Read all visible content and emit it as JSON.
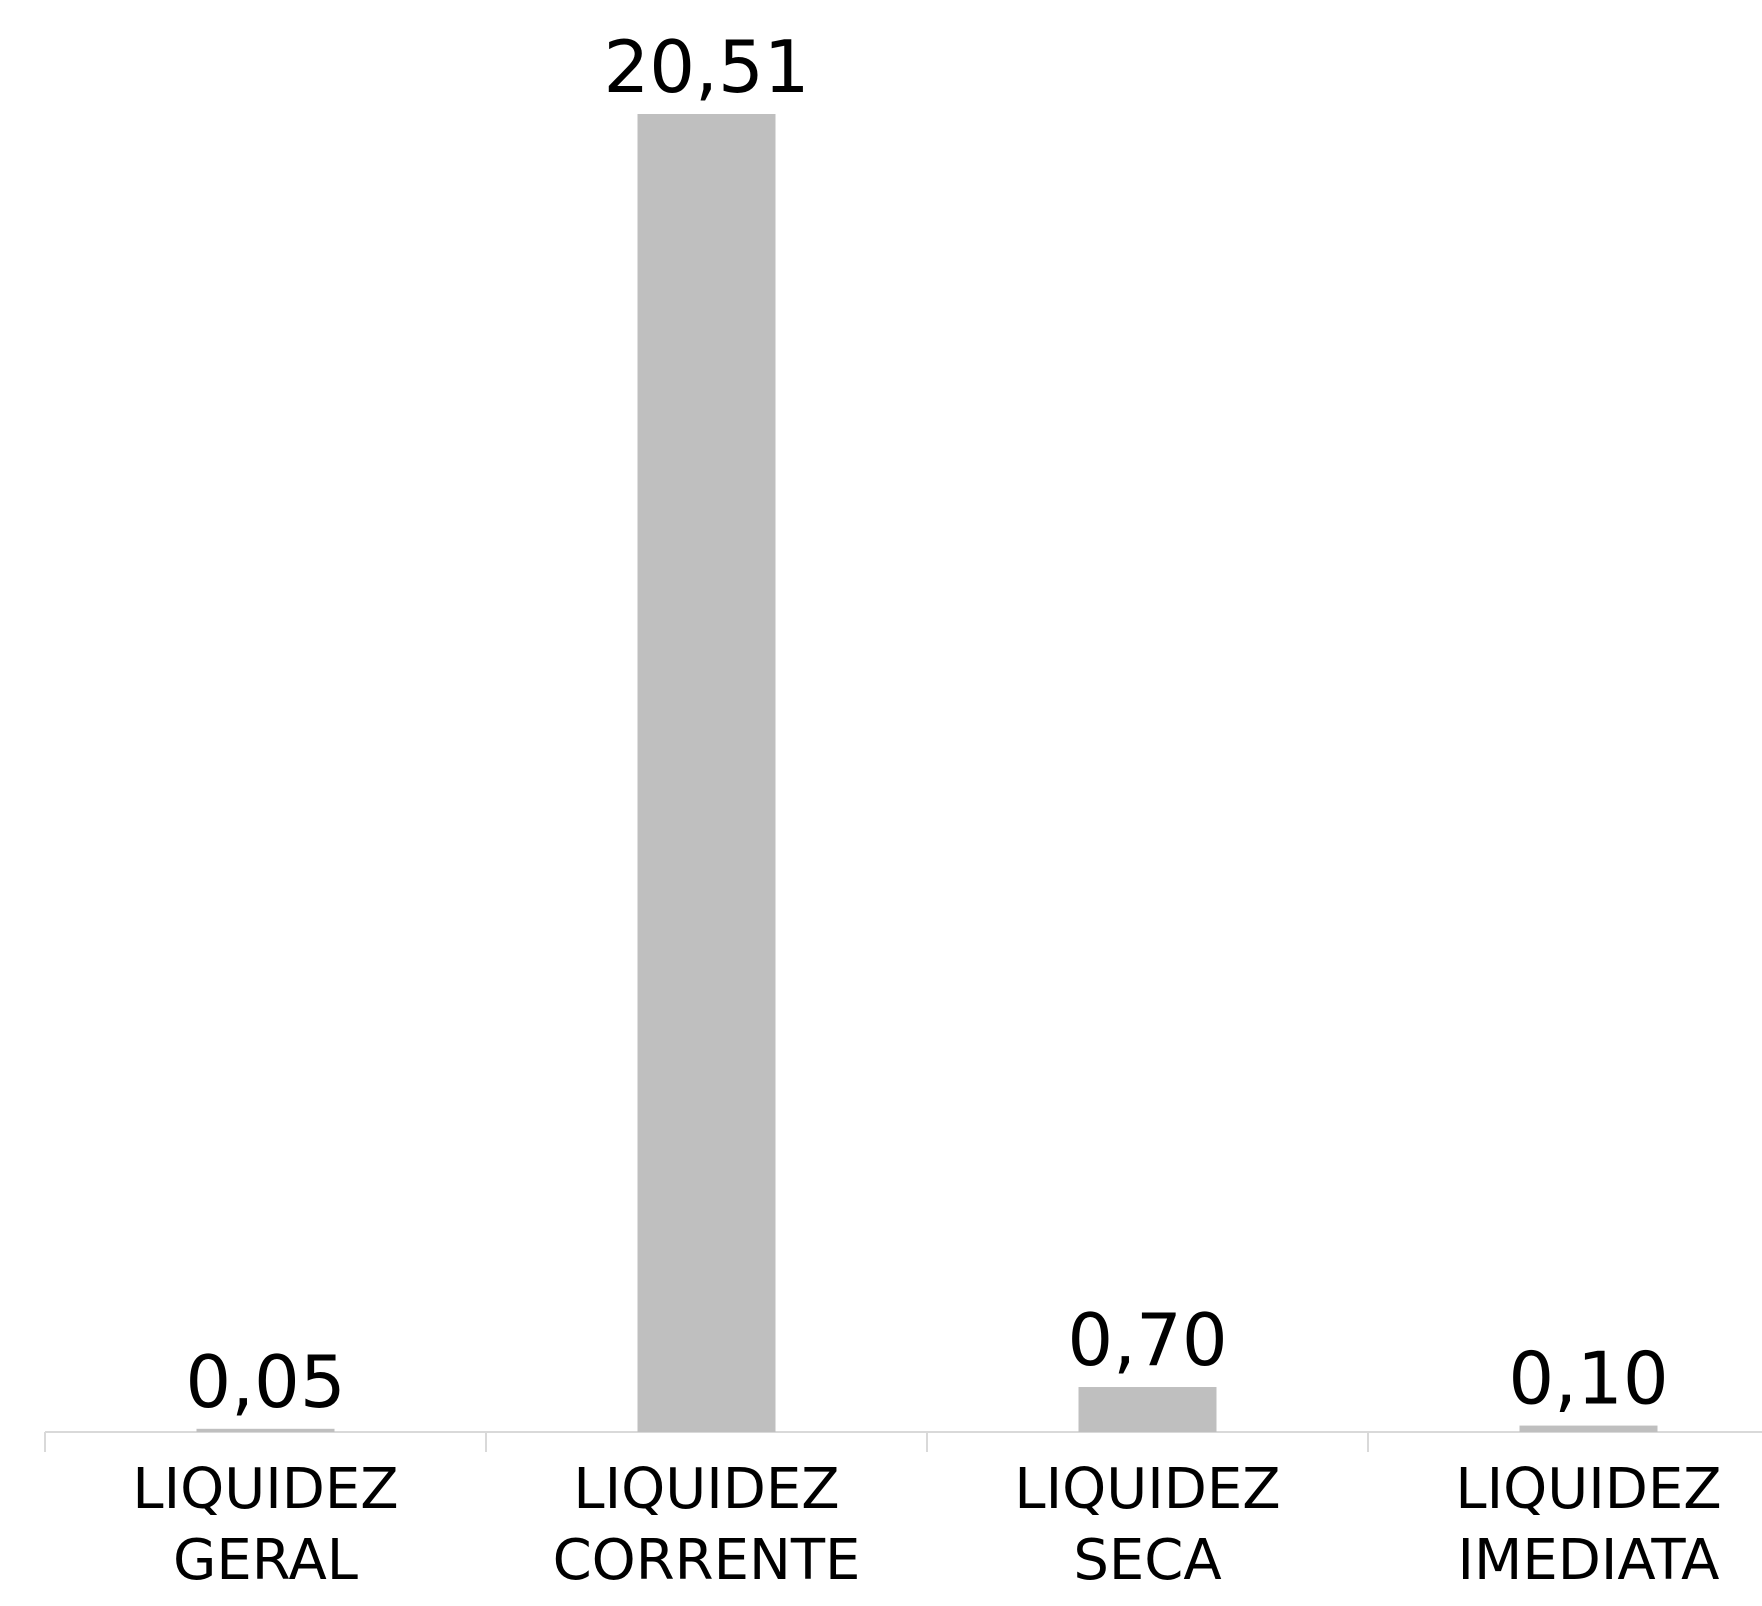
{
  "chart_data": {
    "type": "bar",
    "categories": [
      "LIQUIDEZ GERAL",
      "LIQUIDEZ CORRENTE",
      "LIQUIDEZ SECA",
      "LIQUIDEZ IMEDIATA"
    ],
    "values": [
      0.05,
      20.51,
      0.7,
      0.1
    ],
    "value_labels": [
      "0,05",
      "20,51",
      "0,70",
      "0,10"
    ],
    "color": "#bfbfbf"
  }
}
